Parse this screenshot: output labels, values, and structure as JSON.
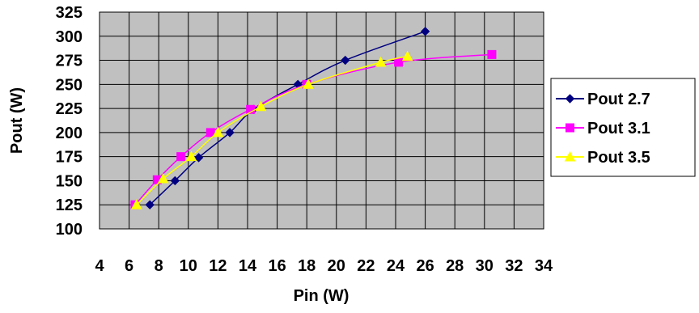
{
  "chart_data": {
    "type": "line",
    "title": "",
    "xlabel": "Pin (W)",
    "ylabel": "Pout (W)",
    "xlim": [
      4,
      34
    ],
    "ylim": [
      100,
      325
    ],
    "xticks": [
      4,
      6,
      8,
      10,
      12,
      14,
      16,
      18,
      20,
      22,
      24,
      26,
      28,
      30,
      32,
      34
    ],
    "yticks": [
      100,
      125,
      150,
      175,
      200,
      225,
      250,
      275,
      300,
      325
    ],
    "grid": true,
    "legend_position": "right",
    "plot_background": "#c0c0c0",
    "series": [
      {
        "name": "Pout 2.7",
        "color": "#000080",
        "marker": "diamond",
        "x": [
          7.4,
          9.1,
          10.7,
          12.8,
          14.4,
          17.4,
          20.6,
          26.0
        ],
        "y": [
          125,
          150,
          174,
          200,
          224,
          250,
          275,
          305
        ]
      },
      {
        "name": "Pout 3.1",
        "color": "#ff00ff",
        "marker": "square",
        "x": [
          6.4,
          7.9,
          9.5,
          11.5,
          14.2,
          18.0,
          24.2,
          30.5
        ],
        "y": [
          125,
          151,
          175,
          200,
          224,
          250,
          273,
          281
        ]
      },
      {
        "name": "Pout 3.5",
        "color": "#ffff00",
        "marker": "triangle",
        "x": [
          6.5,
          8.3,
          10.2,
          12.0,
          14.9,
          18.1,
          23.0,
          24.8
        ],
        "y": [
          125,
          152,
          175,
          200,
          227,
          250,
          273,
          279
        ]
      }
    ]
  }
}
